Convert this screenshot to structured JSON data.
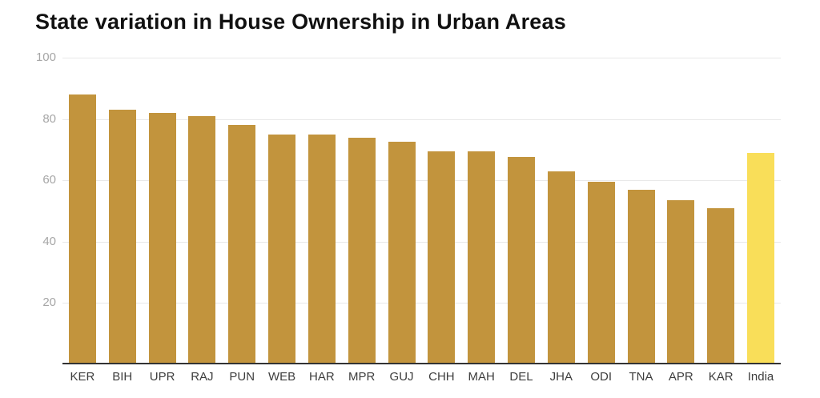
{
  "chart_data": {
    "type": "bar",
    "title": "State variation in House Ownership in Urban Areas",
    "categories": [
      "KER",
      "BIH",
      "UPR",
      "RAJ",
      "PUN",
      "WEB",
      "HAR",
      "MPR",
      "GUJ",
      "CHH",
      "MAH",
      "DEL",
      "JHA",
      "ODI",
      "TNA",
      "APR",
      "KAR",
      "India"
    ],
    "values": [
      88,
      83,
      82,
      81,
      78,
      75,
      75,
      74,
      72.5,
      69.5,
      69.5,
      67.5,
      63,
      59.5,
      57,
      53.5,
      51,
      69
    ],
    "highlight_category": "India",
    "xlabel": "",
    "ylabel": "",
    "ylim": [
      0,
      100
    ],
    "yticks": [
      20,
      40,
      60,
      80,
      100
    ],
    "grid": true,
    "legend": false,
    "colors": {
      "bar": "#c2943d",
      "highlight_bar": "#f9de59",
      "gridline": "#e8e8e8",
      "axis_line": "#333333",
      "y_tick_label": "#a6a6a6",
      "x_tick_label": "#3d3d3d",
      "title": "#111111",
      "background": "#ffffff"
    }
  }
}
